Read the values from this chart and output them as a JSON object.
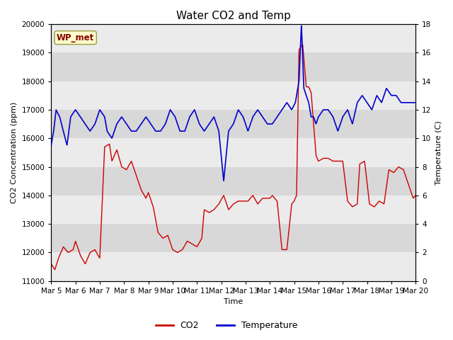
{
  "title": "Water CO2 and Temp",
  "xlabel": "Time",
  "ylabel_left": "CO2 Concentration (ppm)",
  "ylabel_right": "Temperature (C)",
  "co2_ylim": [
    11000,
    20000
  ],
  "temp_ylim": [
    0,
    18
  ],
  "co2_yticks": [
    11000,
    12000,
    13000,
    14000,
    15000,
    16000,
    17000,
    18000,
    19000,
    20000
  ],
  "temp_yticks": [
    0,
    2,
    4,
    6,
    8,
    10,
    12,
    14,
    16,
    18
  ],
  "xtick_labels": [
    "Mar 5",
    "Mar 6",
    "Mar 7",
    "Mar 8",
    "Mar 9",
    "Mar 10",
    "Mar 11",
    "Mar 12",
    "Mar 13",
    "Mar 14",
    "Mar 15",
    "Mar 16",
    "Mar 17",
    "Mar 18",
    "Mar 19",
    "Mar 20"
  ],
  "co2_color": "#cc0000",
  "temp_color": "#0000cc",
  "bg_color": "#ffffff",
  "plot_bg_light": "#ebebeb",
  "plot_bg_dark": "#d8d8d8",
  "annotation_text": "WP_met",
  "annotation_bg": "#ffffcc",
  "annotation_border": "#999944",
  "legend_co2": "CO2",
  "legend_temp": "Temperature",
  "title_fontsize": 11,
  "axis_fontsize": 8,
  "tick_fontsize": 7.5,
  "co2_knots_x": [
    0,
    0.15,
    0.3,
    0.5,
    0.7,
    0.9,
    1.0,
    1.2,
    1.4,
    1.6,
    1.8,
    2.0,
    2.2,
    2.4,
    2.5,
    2.7,
    2.9,
    3.1,
    3.3,
    3.5,
    3.7,
    3.9,
    4.0,
    4.2,
    4.4,
    4.6,
    4.8,
    5.0,
    5.2,
    5.4,
    5.6,
    5.8,
    6.0,
    6.2,
    6.3,
    6.5,
    6.7,
    6.9,
    7.1,
    7.3,
    7.5,
    7.7,
    7.9,
    8.1,
    8.3,
    8.5,
    8.7,
    8.9,
    9.0,
    9.1,
    9.3,
    9.5,
    9.7,
    9.9,
    10.0,
    10.1,
    10.2,
    10.35,
    10.5,
    10.6,
    10.7,
    10.9,
    11.0,
    11.2,
    11.4,
    11.6,
    11.8,
    12.0,
    12.2,
    12.4,
    12.6,
    12.7,
    12.9,
    13.1,
    13.3,
    13.5,
    13.7,
    13.9,
    14.1,
    14.3,
    14.5,
    14.7,
    14.9,
    15.0
  ],
  "co2_knots_y": [
    11600,
    11400,
    11800,
    12200,
    12000,
    12100,
    12400,
    11900,
    11600,
    12000,
    12100,
    11800,
    15700,
    15800,
    15200,
    15600,
    15000,
    14900,
    15200,
    14700,
    14200,
    13900,
    14100,
    13600,
    12700,
    12500,
    12600,
    12100,
    12000,
    12100,
    12400,
    12300,
    12200,
    12500,
    13500,
    13400,
    13500,
    13700,
    14000,
    13500,
    13700,
    13800,
    13800,
    13800,
    14000,
    13700,
    13900,
    13900,
    13900,
    14000,
    13800,
    12100,
    12100,
    13700,
    13800,
    14000,
    19100,
    19300,
    17800,
    17800,
    17600,
    15400,
    15200,
    15300,
    15300,
    15200,
    15200,
    15200,
    13800,
    13600,
    13700,
    15100,
    15200,
    13700,
    13600,
    13800,
    13700,
    14900,
    14800,
    15000,
    14900,
    14400,
    13900,
    14000
  ],
  "temp_knots_x": [
    0,
    0.1,
    0.2,
    0.35,
    0.5,
    0.65,
    0.8,
    1.0,
    1.2,
    1.4,
    1.6,
    1.8,
    2.0,
    2.2,
    2.3,
    2.5,
    2.7,
    2.9,
    3.1,
    3.3,
    3.5,
    3.7,
    3.9,
    4.1,
    4.3,
    4.5,
    4.7,
    4.9,
    5.1,
    5.3,
    5.5,
    5.7,
    5.9,
    6.1,
    6.3,
    6.5,
    6.7,
    6.9,
    7.1,
    7.3,
    7.5,
    7.7,
    7.9,
    8.1,
    8.3,
    8.5,
    8.7,
    8.9,
    9.1,
    9.3,
    9.5,
    9.7,
    9.9,
    10.05,
    10.1,
    10.15,
    10.2,
    10.25,
    10.3,
    10.4,
    10.5,
    10.6,
    10.7,
    10.8,
    10.9,
    11.0,
    11.2,
    11.4,
    11.6,
    11.8,
    12.0,
    12.2,
    12.4,
    12.6,
    12.8,
    13.0,
    13.2,
    13.4,
    13.6,
    13.8,
    14.0,
    14.2,
    14.4,
    14.6,
    14.8,
    15.0
  ],
  "temp_knots_y": [
    9.5,
    10.5,
    12.0,
    11.5,
    10.5,
    9.5,
    11.5,
    12.0,
    11.5,
    11.0,
    10.5,
    11.0,
    12.0,
    11.5,
    10.5,
    10.0,
    11.0,
    11.5,
    11.0,
    10.5,
    10.5,
    11.0,
    11.5,
    11.0,
    10.5,
    10.5,
    11.0,
    12.0,
    11.5,
    10.5,
    10.5,
    11.5,
    12.0,
    11.0,
    10.5,
    11.0,
    11.5,
    10.5,
    7.0,
    10.5,
    11.0,
    12.0,
    11.5,
    10.5,
    11.5,
    12.0,
    11.5,
    11.0,
    11.0,
    11.5,
    12.0,
    12.5,
    12.0,
    12.5,
    13.0,
    13.5,
    14.0,
    16.0,
    18.0,
    13.5,
    13.0,
    12.5,
    11.5,
    11.5,
    11.0,
    11.5,
    12.0,
    12.0,
    11.5,
    10.5,
    11.5,
    12.0,
    11.0,
    12.5,
    13.0,
    12.5,
    12.0,
    13.0,
    12.5,
    13.5,
    13.0,
    13.0,
    12.5,
    12.5,
    12.5,
    12.5
  ]
}
